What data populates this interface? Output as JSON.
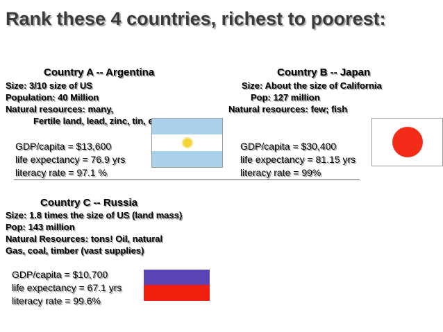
{
  "title": "Rank these 4 countries, richest to poorest:",
  "country_a": {
    "heading": "Country A -- Argentina",
    "size": "Size:  3/10 size of US",
    "population": "Population:  40 Million",
    "resources": "Natural resources:  many,",
    "resources_detail": "Fertile land, lead, zinc, tin, etc",
    "gdp": "GDP/capita = $13,600",
    "life": "life expectancy = 76.9 yrs",
    "literacy": "literacy rate = 97.1 %"
  },
  "country_b": {
    "heading": "Country B -- Japan",
    "size": "Size:  About the size of  California",
    "population": "Pop:  127 million",
    "resources": "Natural resources:  few; fish",
    "gdp": "GDP/capita = $30,400",
    "life": "life expectancy = 81.15 yrs",
    "literacy": "literacy rate = 99%"
  },
  "country_c": {
    "heading": "Country C -- Russia",
    "size": "Size:  1.8 times the size of US (land mass)",
    "population": "Pop:  143 million",
    "resources": "Natural Resources:  tons!  Oil, natural",
    "resources_detail": "Gas, coal, timber (vast supplies)",
    "gdp": "GDP/capita = $10,700",
    "life": "life expectancy = 67.1 yrs",
    "literacy": "literacy rate = 99.6%"
  },
  "colors": {
    "argentina_blue": "#a9d2ea",
    "argentina_sun": "#f2d534",
    "japan_red": "#f22c18",
    "russia_blue": "#5a44b7",
    "russia_red": "#f21e0e"
  },
  "icons": {
    "argentina_flag": "argentina-flag-icon",
    "japan_flag": "japan-flag-icon",
    "russia_flag": "russia-flag-icon"
  }
}
